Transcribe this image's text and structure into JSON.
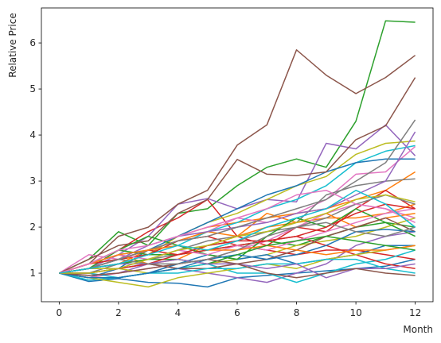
{
  "chart_data": {
    "type": "line",
    "title": "",
    "xlabel": "Month",
    "ylabel": "Relative Price",
    "xlim": [
      -0.6,
      12.6
    ],
    "ylim": [
      0.38,
      6.76
    ],
    "xticks": [
      0,
      2,
      4,
      6,
      8,
      10,
      12
    ],
    "xtick_labels": [
      "0",
      "2",
      "4",
      "6",
      "8",
      "10",
      "12"
    ],
    "yticks": [
      1,
      2,
      3,
      4,
      5,
      6
    ],
    "ytick_labels": [
      "1",
      "2",
      "3",
      "4",
      "5",
      "6"
    ],
    "grid": false,
    "legend": "none",
    "colors": [
      "#1f77b4",
      "#ff7f0e",
      "#2ca02c",
      "#d62728",
      "#9467bd",
      "#8c564b",
      "#e377c2",
      "#7f7f7f",
      "#bcbd22",
      "#17becf"
    ],
    "x": [
      0,
      1,
      2,
      3,
      4,
      5,
      6,
      7,
      8,
      9,
      10,
      11,
      12
    ],
    "series": [
      {
        "values": [
          1.0,
          0.82,
          0.88,
          0.8,
          0.78,
          0.7,
          0.9,
          0.95,
          1.0,
          1.05,
          1.1,
          1.15,
          1.3
        ]
      },
      {
        "values": [
          1.0,
          1.1,
          1.3,
          1.4,
          1.8,
          2.0,
          2.1,
          2.2,
          2.3,
          2.4,
          2.6,
          2.8,
          3.2
        ]
      },
      {
        "values": [
          1.0,
          1.3,
          1.9,
          1.6,
          2.3,
          2.4,
          2.9,
          3.3,
          3.48,
          3.3,
          4.3,
          6.48,
          6.45
        ]
      },
      {
        "values": [
          1.0,
          1.2,
          1.5,
          1.9,
          2.2,
          2.6,
          1.8,
          1.6,
          2.0,
          1.9,
          2.4,
          2.8,
          2.4
        ]
      },
      {
        "values": [
          1.0,
          1.1,
          1.4,
          1.8,
          2.5,
          2.62,
          2.4,
          2.6,
          2.55,
          3.82,
          3.7,
          4.22,
          3.55
        ]
      },
      {
        "values": [
          1.0,
          1.2,
          1.8,
          2.0,
          2.5,
          2.8,
          3.78,
          4.22,
          5.85,
          5.3,
          4.9,
          5.25,
          5.73
        ]
      },
      {
        "values": [
          1.0,
          1.4,
          1.3,
          1.5,
          1.7,
          1.9,
          2.2,
          2.1,
          2.3,
          2.6,
          3.15,
          3.2,
          3.75
        ]
      },
      {
        "values": [
          1.0,
          1.0,
          1.2,
          1.3,
          1.4,
          1.6,
          1.7,
          1.9,
          2.1,
          2.7,
          2.9,
          3.0,
          3.05
        ]
      },
      {
        "values": [
          1.0,
          1.1,
          1.3,
          1.4,
          1.8,
          2.1,
          2.3,
          2.6,
          2.9,
          3.1,
          3.58,
          3.82,
          3.87
        ]
      },
      {
        "values": [
          1.0,
          1.2,
          1.4,
          1.5,
          1.6,
          1.9,
          2.1,
          2.4,
          2.6,
          2.9,
          3.4,
          3.65,
          3.77
        ]
      },
      {
        "values": [
          1.0,
          0.9,
          1.1,
          1.5,
          1.8,
          2.1,
          2.4,
          2.7,
          2.9,
          3.2,
          3.4,
          3.48,
          3.48
        ]
      },
      {
        "values": [
          1.0,
          1.1,
          1.2,
          1.5,
          1.7,
          1.9,
          1.8,
          2.0,
          2.1,
          2.2,
          2.2,
          2.3,
          2.5
        ]
      },
      {
        "values": [
          1.0,
          1.2,
          1.5,
          1.4,
          1.4,
          1.5,
          1.6,
          1.7,
          1.6,
          1.8,
          2.0,
          2.1,
          2.0
        ]
      },
      {
        "values": [
          1.0,
          1.1,
          1.3,
          1.4,
          1.7,
          1.8,
          1.6,
          1.5,
          1.4,
          1.5,
          1.5,
          1.4,
          1.3
        ]
      },
      {
        "values": [
          1.0,
          0.95,
          1.0,
          1.2,
          1.1,
          1.0,
          0.9,
          0.8,
          1.0,
          1.2,
          1.6,
          1.8,
          1.9
        ]
      },
      {
        "values": [
          1.0,
          1.3,
          1.6,
          1.7,
          2.3,
          2.6,
          3.47,
          3.15,
          3.12,
          3.2,
          3.9,
          4.2,
          5.25
        ]
      },
      {
        "values": [
          1.0,
          0.9,
          1.0,
          1.1,
          1.2,
          1.3,
          1.5,
          1.7,
          2.0,
          2.3,
          2.5,
          2.4,
          2.2
        ]
      },
      {
        "values": [
          1.0,
          1.1,
          1.2,
          1.3,
          1.5,
          1.7,
          1.8,
          1.9,
          2.0,
          2.2,
          2.5,
          2.7,
          2.5
        ]
      },
      {
        "values": [
          1.0,
          1.1,
          1.1,
          1.0,
          1.1,
          1.2,
          1.3,
          1.4,
          1.6,
          1.7,
          1.8,
          2.0,
          2.2
        ]
      },
      {
        "values": [
          1.0,
          0.85,
          0.9,
          1.0,
          1.1,
          1.2,
          1.0,
          1.0,
          0.8,
          1.0,
          1.2,
          1.3,
          1.5
        ]
      },
      {
        "values": [
          1.0,
          0.9,
          0.9,
          1.0,
          1.2,
          1.4,
          1.3,
          1.4,
          1.2,
          1.3,
          1.4,
          1.6,
          1.6
        ]
      },
      {
        "values": [
          1.0,
          1.2,
          1.4,
          1.2,
          1.3,
          1.6,
          1.8,
          2.3,
          2.1,
          2.3,
          2.0,
          2.2,
          2.3
        ]
      },
      {
        "values": [
          1.0,
          1.1,
          1.5,
          1.8,
          1.6,
          1.4,
          1.3,
          1.8,
          2.2,
          2.0,
          2.4,
          2.1,
          1.8
        ]
      },
      {
        "values": [
          1.0,
          1.2,
          1.3,
          1.5,
          1.4,
          1.5,
          1.6,
          1.7,
          1.8,
          1.6,
          1.4,
          1.2,
          1.1
        ]
      },
      {
        "values": [
          1.0,
          1.1,
          1.3,
          1.6,
          1.8,
          1.9,
          2.0,
          2.1,
          2.3,
          2.4,
          2.7,
          3.0,
          4.07
        ]
      },
      {
        "values": [
          1.0,
          1.0,
          1.1,
          1.2,
          1.1,
          1.1,
          1.2,
          1.3,
          1.5,
          1.8,
          2.0,
          2.2,
          1.9
        ]
      },
      {
        "values": [
          1.0,
          1.2,
          1.4,
          1.3,
          1.5,
          1.4,
          1.6,
          1.5,
          1.7,
          1.9,
          2.1,
          2.3,
          2.4
        ]
      },
      {
        "values": [
          1.0,
          1.1,
          1.3,
          1.5,
          1.7,
          1.8,
          2.0,
          2.2,
          2.4,
          2.6,
          3.0,
          3.4,
          4.33
        ]
      },
      {
        "values": [
          1.0,
          0.9,
          0.8,
          0.7,
          0.9,
          1.0,
          1.1,
          1.2,
          1.1,
          1.3,
          1.4,
          1.5,
          1.6
        ]
      },
      {
        "values": [
          1.0,
          1.0,
          0.9,
          1.0,
          1.0,
          1.1,
          1.1,
          1.2,
          1.2,
          1.3,
          1.3,
          1.1,
          1.0
        ]
      },
      {
        "values": [
          1.0,
          0.9,
          0.9,
          1.0,
          1.1,
          1.3,
          1.4,
          1.3,
          1.4,
          1.6,
          1.9,
          1.95,
          1.9
        ]
      },
      {
        "values": [
          1.0,
          1.2,
          1.4,
          1.5,
          1.6,
          1.5,
          1.5,
          1.6,
          1.5,
          1.4,
          1.5,
          1.5,
          1.6
        ]
      },
      {
        "values": [
          1.0,
          1.1,
          1.2,
          1.3,
          1.3,
          1.2,
          1.4,
          1.6,
          1.7,
          1.8,
          1.7,
          1.6,
          1.5
        ]
      },
      {
        "values": [
          1.0,
          1.0,
          1.1,
          1.2,
          1.4,
          1.6,
          1.7,
          1.7,
          1.8,
          2.0,
          2.3,
          2.5,
          2.4
        ]
      },
      {
        "values": [
          1.0,
          1.1,
          1.2,
          1.2,
          1.3,
          1.2,
          1.2,
          1.1,
          1.2,
          0.9,
          1.1,
          1.1,
          1.2
        ]
      },
      {
        "values": [
          1.0,
          0.95,
          1.0,
          1.1,
          1.2,
          1.3,
          1.2,
          1.0,
          0.9,
          1.0,
          1.1,
          1.0,
          0.95
        ]
      },
      {
        "values": [
          1.0,
          1.2,
          1.5,
          1.6,
          1.8,
          2.0,
          2.2,
          2.4,
          2.7,
          2.8,
          2.5,
          2.4,
          2.1
        ]
      },
      {
        "values": [
          1.0,
          1.1,
          1.3,
          1.2,
          1.2,
          1.3,
          1.5,
          1.8,
          2.0,
          2.1,
          1.9,
          1.8,
          2.0
        ]
      },
      {
        "values": [
          1.0,
          1.0,
          1.1,
          1.3,
          1.5,
          1.6,
          1.8,
          1.9,
          2.1,
          2.3,
          2.6,
          2.7,
          2.55
        ]
      },
      {
        "values": [
          1.0,
          1.1,
          1.2,
          1.4,
          1.6,
          1.5,
          1.7,
          2.0,
          2.2,
          2.4,
          2.8,
          2.5,
          2.0
        ]
      }
    ]
  }
}
